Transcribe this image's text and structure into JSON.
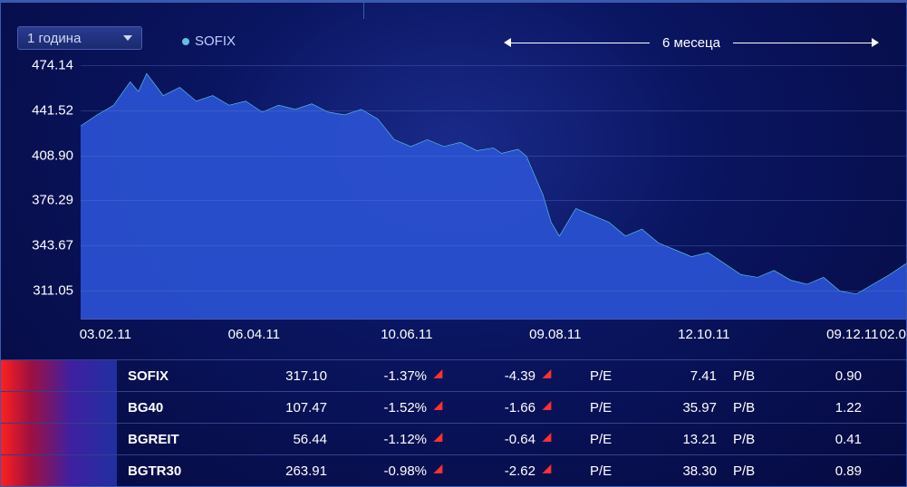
{
  "dropdown": {
    "label": "1 година"
  },
  "legend": {
    "series_name": "SOFIX",
    "dot_color": "#60c0e0"
  },
  "range_label": "6 месеца",
  "chart": {
    "type": "area",
    "line_color": "#60d0e8",
    "fill_color": "#2a50d0",
    "fill_opacity": 0.95,
    "background_gradient": [
      "#1a2a8a",
      "#0a1560",
      "#050a40"
    ],
    "grid_color": "rgba(90,120,200,0.35)",
    "y_ticks": [
      "474.14",
      "441.52",
      "408.90",
      "376.29",
      "343.67",
      "311.05"
    ],
    "y_min": 290,
    "y_max": 480,
    "x_ticks": [
      "03.02.11",
      "06.04.11",
      "10.06.11",
      "09.08.11",
      "12.10.11",
      "09.12.11",
      "02.0"
    ],
    "x_tick_positions_pct": [
      3,
      21,
      39.5,
      57.5,
      75.5,
      93.5,
      100
    ],
    "data_points": [
      [
        0,
        430
      ],
      [
        2,
        438
      ],
      [
        4,
        445
      ],
      [
        6,
        462
      ],
      [
        7,
        455
      ],
      [
        8,
        468
      ],
      [
        10,
        452
      ],
      [
        12,
        458
      ],
      [
        14,
        448
      ],
      [
        16,
        452
      ],
      [
        18,
        445
      ],
      [
        20,
        448
      ],
      [
        22,
        440
      ],
      [
        24,
        445
      ],
      [
        26,
        442
      ],
      [
        28,
        446
      ],
      [
        30,
        440
      ],
      [
        32,
        438
      ],
      [
        34,
        442
      ],
      [
        36,
        435
      ],
      [
        38,
        420
      ],
      [
        40,
        415
      ],
      [
        42,
        420
      ],
      [
        44,
        415
      ],
      [
        46,
        418
      ],
      [
        48,
        412
      ],
      [
        50,
        414
      ],
      [
        51,
        410
      ],
      [
        53,
        413
      ],
      [
        54,
        408
      ],
      [
        56,
        380
      ],
      [
        57,
        360
      ],
      [
        58,
        350
      ],
      [
        60,
        370
      ],
      [
        62,
        365
      ],
      [
        64,
        360
      ],
      [
        66,
        350
      ],
      [
        68,
        355
      ],
      [
        70,
        345
      ],
      [
        72,
        340
      ],
      [
        74,
        335
      ],
      [
        76,
        338
      ],
      [
        78,
        330
      ],
      [
        80,
        322
      ],
      [
        82,
        320
      ],
      [
        84,
        325
      ],
      [
        86,
        318
      ],
      [
        88,
        315
      ],
      [
        90,
        320
      ],
      [
        92,
        310
      ],
      [
        94,
        308
      ],
      [
        96,
        315
      ],
      [
        98,
        322
      ],
      [
        100,
        330
      ]
    ]
  },
  "table": {
    "pe_label": "P/E",
    "pb_label": "P/B",
    "rows": [
      {
        "name": "SOFIX",
        "price": "317.10",
        "pct": "-1.37%",
        "chg": "-4.39",
        "pe": "7.41",
        "pb": "0.90",
        "dir": "down"
      },
      {
        "name": "BG40",
        "price": "107.47",
        "pct": "-1.52%",
        "chg": "-1.66",
        "pe": "35.97",
        "pb": "1.22",
        "dir": "down"
      },
      {
        "name": "BGREIT",
        "price": "56.44",
        "pct": "-1.12%",
        "chg": "-0.64",
        "pe": "13.21",
        "pb": "0.41",
        "dir": "down"
      },
      {
        "name": "BGTR30",
        "price": "263.91",
        "pct": "-0.98%",
        "chg": "-2.62",
        "pe": "38.30",
        "pb": "0.89",
        "dir": "down"
      }
    ]
  },
  "colors": {
    "text": "#ffffff",
    "down_arrow": "#ff3030",
    "row_gradient": [
      "#ff2020",
      "#a01040",
      "#4020a0",
      "#2030a0"
    ]
  }
}
